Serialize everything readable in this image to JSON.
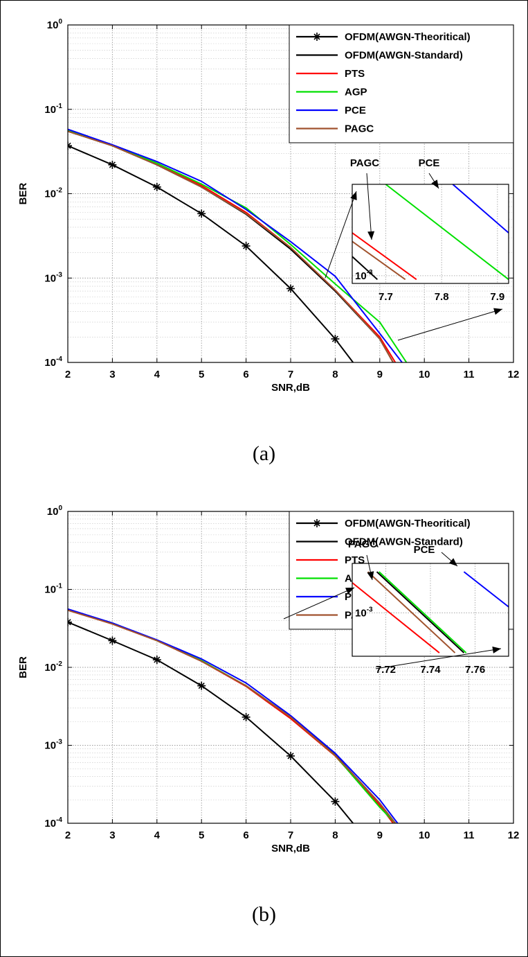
{
  "figure_captions": [
    "(a)",
    "(b)"
  ],
  "chart_data": [
    {
      "type": "line",
      "xlabel": "SNR,dB",
      "ylabel": "BER",
      "xlim": [
        2,
        12
      ],
      "ylim": [
        0.0001,
        1
      ],
      "yscale": "log",
      "x_ticks": [
        "2",
        "3",
        "4",
        "5",
        "6",
        "7",
        "8",
        "9",
        "10",
        "11",
        "12"
      ],
      "y_ticks": [
        {
          "base": "10",
          "exp": "0"
        },
        {
          "base": "10",
          "exp": "-1"
        },
        {
          "base": "10",
          "exp": "-2"
        },
        {
          "base": "10",
          "exp": "-3"
        },
        {
          "base": "10",
          "exp": "-4"
        }
      ],
      "grid": true,
      "legend_position": "top-right",
      "series": [
        {
          "name": "OFDM(AWGN-Theoritical)",
          "color": "#000000",
          "marker": "star",
          "x": [
            2,
            3,
            4,
            5,
            6,
            7,
            8,
            8.4
          ],
          "y": [
            0.037,
            0.022,
            0.012,
            0.0058,
            0.0024,
            0.00075,
            0.00019,
            0.0001
          ]
        },
        {
          "name": "OFDM(AWGN-Standard)",
          "color": "#000000",
          "marker": "none",
          "x": [
            2,
            3,
            4,
            5,
            6,
            7,
            8,
            9,
            9.3
          ],
          "y": [
            0.055,
            0.037,
            0.022,
            0.012,
            0.0057,
            0.0022,
            0.0007,
            0.00019,
            0.0001
          ]
        },
        {
          "name": "PTS",
          "color": "#ff0000",
          "marker": "none",
          "x": [
            2,
            3,
            4,
            5,
            6,
            7,
            8,
            9,
            9.35
          ],
          "y": [
            0.056,
            0.037,
            0.023,
            0.0125,
            0.006,
            0.0023,
            0.00072,
            0.0002,
            0.0001
          ]
        },
        {
          "name": "AGP",
          "color": "#00e000",
          "marker": "none",
          "x": [
            2,
            3,
            4,
            5,
            6,
            7,
            8,
            9,
            9.6
          ],
          "y": [
            0.057,
            0.037,
            0.023,
            0.013,
            0.0068,
            0.0025,
            0.00085,
            0.0003,
            0.0001
          ]
        },
        {
          "name": "PCE",
          "color": "#0000ff",
          "marker": "none",
          "x": [
            2,
            3,
            4,
            5,
            6,
            7,
            8,
            9,
            9.5
          ],
          "y": [
            0.058,
            0.038,
            0.024,
            0.014,
            0.0065,
            0.0027,
            0.00105,
            0.00022,
            0.0001
          ]
        },
        {
          "name": "PAGC",
          "color": "#a0522d",
          "marker": "none",
          "x": [
            2,
            3,
            4,
            5,
            6,
            7,
            8,
            9,
            9.3
          ],
          "y": [
            0.055,
            0.037,
            0.022,
            0.012,
            0.0058,
            0.0023,
            0.00072,
            0.00019,
            0.0001
          ]
        }
      ],
      "inset": {
        "xlim": [
          7.64,
          7.92
        ],
        "ylim": [
          0.0009,
          0.0035
        ],
        "x_ticks": [
          "7.7",
          "7.8",
          "7.9"
        ],
        "y_tick": {
          "base": "10",
          "exp": "-3"
        },
        "annotations": [
          "PAGC",
          "PCE"
        ],
        "lines": [
          {
            "color": "#000000",
            "x": [
              7.64,
              7.685
            ],
            "y": [
              0.0013,
              0.00095
            ]
          },
          {
            "color": "#a0522d",
            "x": [
              7.64,
              7.735
            ],
            "y": [
              0.0016,
              0.00095
            ]
          },
          {
            "color": "#ff0000",
            "x": [
              7.64,
              7.755
            ],
            "y": [
              0.0018,
              0.00095
            ]
          },
          {
            "color": "#00e000",
            "x": [
              7.7,
              7.92
            ],
            "y": [
              0.0035,
              0.00095
            ]
          },
          {
            "color": "#0000ff",
            "x": [
              7.82,
              7.92
            ],
            "y": [
              0.0035,
              0.0018
            ]
          }
        ]
      }
    },
    {
      "type": "line",
      "xlabel": "SNR,dB",
      "ylabel": "BER",
      "xlim": [
        2,
        12
      ],
      "ylim": [
        0.0001,
        1
      ],
      "yscale": "log",
      "x_ticks": [
        "2",
        "3",
        "4",
        "5",
        "6",
        "7",
        "8",
        "9",
        "10",
        "11",
        "12"
      ],
      "y_ticks": [
        {
          "base": "10",
          "exp": "0"
        },
        {
          "base": "10",
          "exp": "-1"
        },
        {
          "base": "10",
          "exp": "-2"
        },
        {
          "base": "10",
          "exp": "-3"
        },
        {
          "base": "10",
          "exp": "-4"
        }
      ],
      "grid": true,
      "legend_position": "top-right",
      "series": [
        {
          "name": "OFDM(AWGN-Theoritical)",
          "color": "#000000",
          "marker": "star",
          "x": [
            2,
            3,
            4,
            5,
            6,
            7,
            8,
            8.4
          ],
          "y": [
            0.038,
            0.022,
            0.0125,
            0.0058,
            0.0023,
            0.00073,
            0.00019,
            0.0001
          ]
        },
        {
          "name": "OFDM(AWGN-Standard)",
          "color": "#000000",
          "marker": "none",
          "x": [
            2,
            3,
            4,
            5,
            6,
            7,
            8,
            9,
            9.35
          ],
          "y": [
            0.055,
            0.037,
            0.022,
            0.012,
            0.0058,
            0.0023,
            0.00075,
            0.00018,
            0.0001
          ]
        },
        {
          "name": "PTS",
          "color": "#ff0000",
          "marker": "none",
          "x": [
            2,
            3,
            4,
            5,
            6,
            7,
            8,
            9,
            9.3
          ],
          "y": [
            0.054,
            0.036,
            0.022,
            0.012,
            0.0057,
            0.0022,
            0.00073,
            0.00017,
            0.0001
          ]
        },
        {
          "name": "AGP",
          "color": "#00e000",
          "marker": "none",
          "x": [
            2,
            3,
            4,
            5,
            6,
            7,
            8,
            9,
            9.35
          ],
          "y": [
            0.055,
            0.037,
            0.022,
            0.0122,
            0.0058,
            0.0023,
            0.00074,
            0.00016,
            0.0001
          ]
        },
        {
          "name": "PCE",
          "color": "#0000ff",
          "marker": "none",
          "x": [
            2,
            3,
            4,
            5,
            6,
            7,
            8,
            9,
            9.4
          ],
          "y": [
            0.056,
            0.037,
            0.0225,
            0.0128,
            0.0063,
            0.0024,
            0.00079,
            0.0002,
            0.0001
          ]
        },
        {
          "name": "PAGC",
          "color": "#a0522d",
          "marker": "none",
          "x": [
            2,
            3,
            4,
            5,
            6,
            7,
            8,
            9,
            9.35
          ],
          "y": [
            0.054,
            0.036,
            0.022,
            0.012,
            0.0058,
            0.0023,
            0.00074,
            0.00018,
            0.0001
          ]
        }
      ],
      "inset": {
        "xlim": [
          7.705,
          7.775
        ],
        "ylim": [
          0.0007,
          0.0015
        ],
        "x_ticks": [
          "7.72",
          "7.74",
          "7.76"
        ],
        "y_tick": {
          "base": "10",
          "exp": "-3"
        },
        "annotations": [
          "PAGC",
          "PCE"
        ],
        "lines": [
          {
            "color": "#ff0000",
            "x": [
              7.705,
              7.744
            ],
            "y": [
              0.00128,
              0.00072
            ]
          },
          {
            "color": "#a0522d",
            "x": [
              7.712,
              7.751
            ],
            "y": [
              0.0014,
              0.00072
            ]
          },
          {
            "color": "#000000",
            "x": [
              7.716,
              7.755
            ],
            "y": [
              0.0014,
              0.00072
            ]
          },
          {
            "color": "#00e000",
            "x": [
              7.717,
              7.756
            ],
            "y": [
              0.0014,
              0.00072
            ]
          },
          {
            "color": "#0000ff",
            "x": [
              7.755,
              7.775
            ],
            "y": [
              0.0014,
              0.00105
            ]
          }
        ]
      }
    }
  ]
}
